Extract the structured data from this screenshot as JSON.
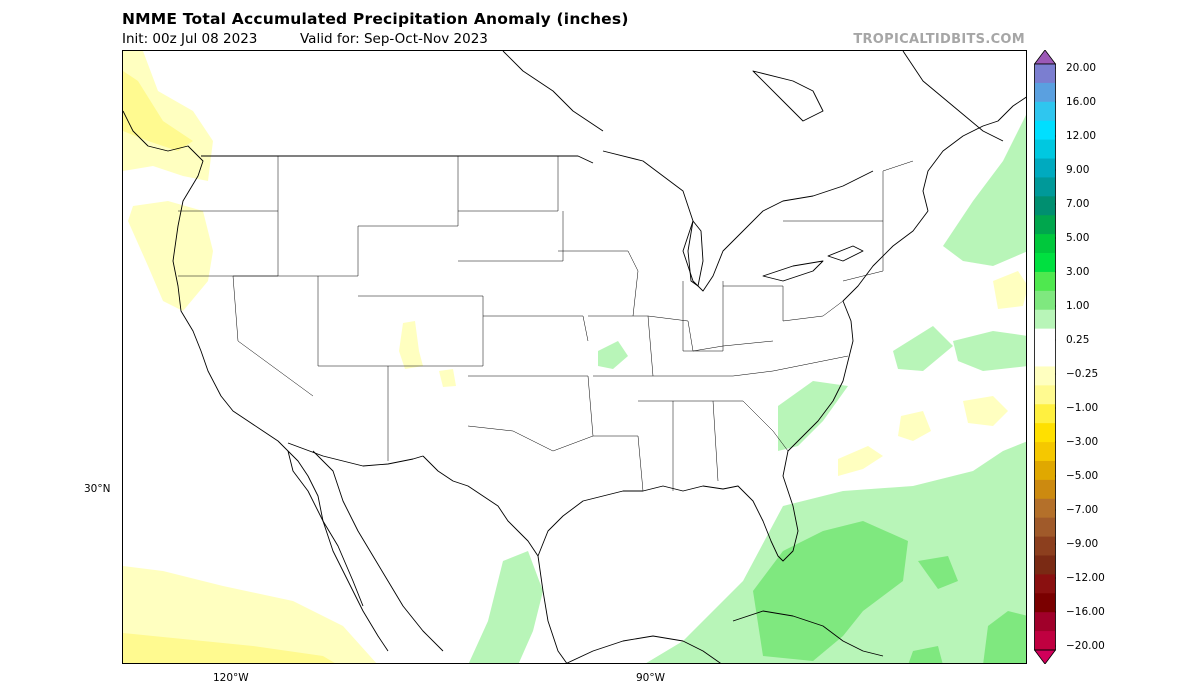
{
  "header": {
    "title": "NMME Total Accumulated Precipitation Anomaly (inches)",
    "init": "Init: 00z Jul 08 2023",
    "valid": "Valid for: Sep-Oct-Nov 2023",
    "watermark": "TROPICALTIDBITS.COM"
  },
  "axes": {
    "lat_label": "30°N",
    "lon_labels": [
      "120°W",
      "90°W"
    ]
  },
  "colorbar": {
    "labels": [
      "20.00",
      "16.00",
      "12.00",
      "9.00",
      "7.00",
      "5.00",
      "3.00",
      "1.00",
      "0.25",
      "−0.25",
      "−1.00",
      "−3.00",
      "−5.00",
      "−7.00",
      "−9.00",
      "−12.00",
      "−16.00",
      "−20.00"
    ],
    "colors": [
      "#9b59b6",
      "#7b7ed0",
      "#5aa0e0",
      "#2fc6ef",
      "#00dfff",
      "#00c8e0",
      "#00aabf",
      "#009999",
      "#008f70",
      "#00a64d",
      "#00c83c",
      "#00e040",
      "#4fe84f",
      "#7fe87f",
      "#b8f5b8",
      "#ffffff",
      "#ffffff",
      "#ffffc0",
      "#fffa90",
      "#fff040",
      "#ffe000",
      "#f5c800",
      "#e0a800",
      "#cc8a10",
      "#b4702a",
      "#a05a2a",
      "#8c3f1e",
      "#7a2a14",
      "#8a1010",
      "#7a0000",
      "#a0002a",
      "#c00040",
      "#d0005a"
    ]
  }
}
